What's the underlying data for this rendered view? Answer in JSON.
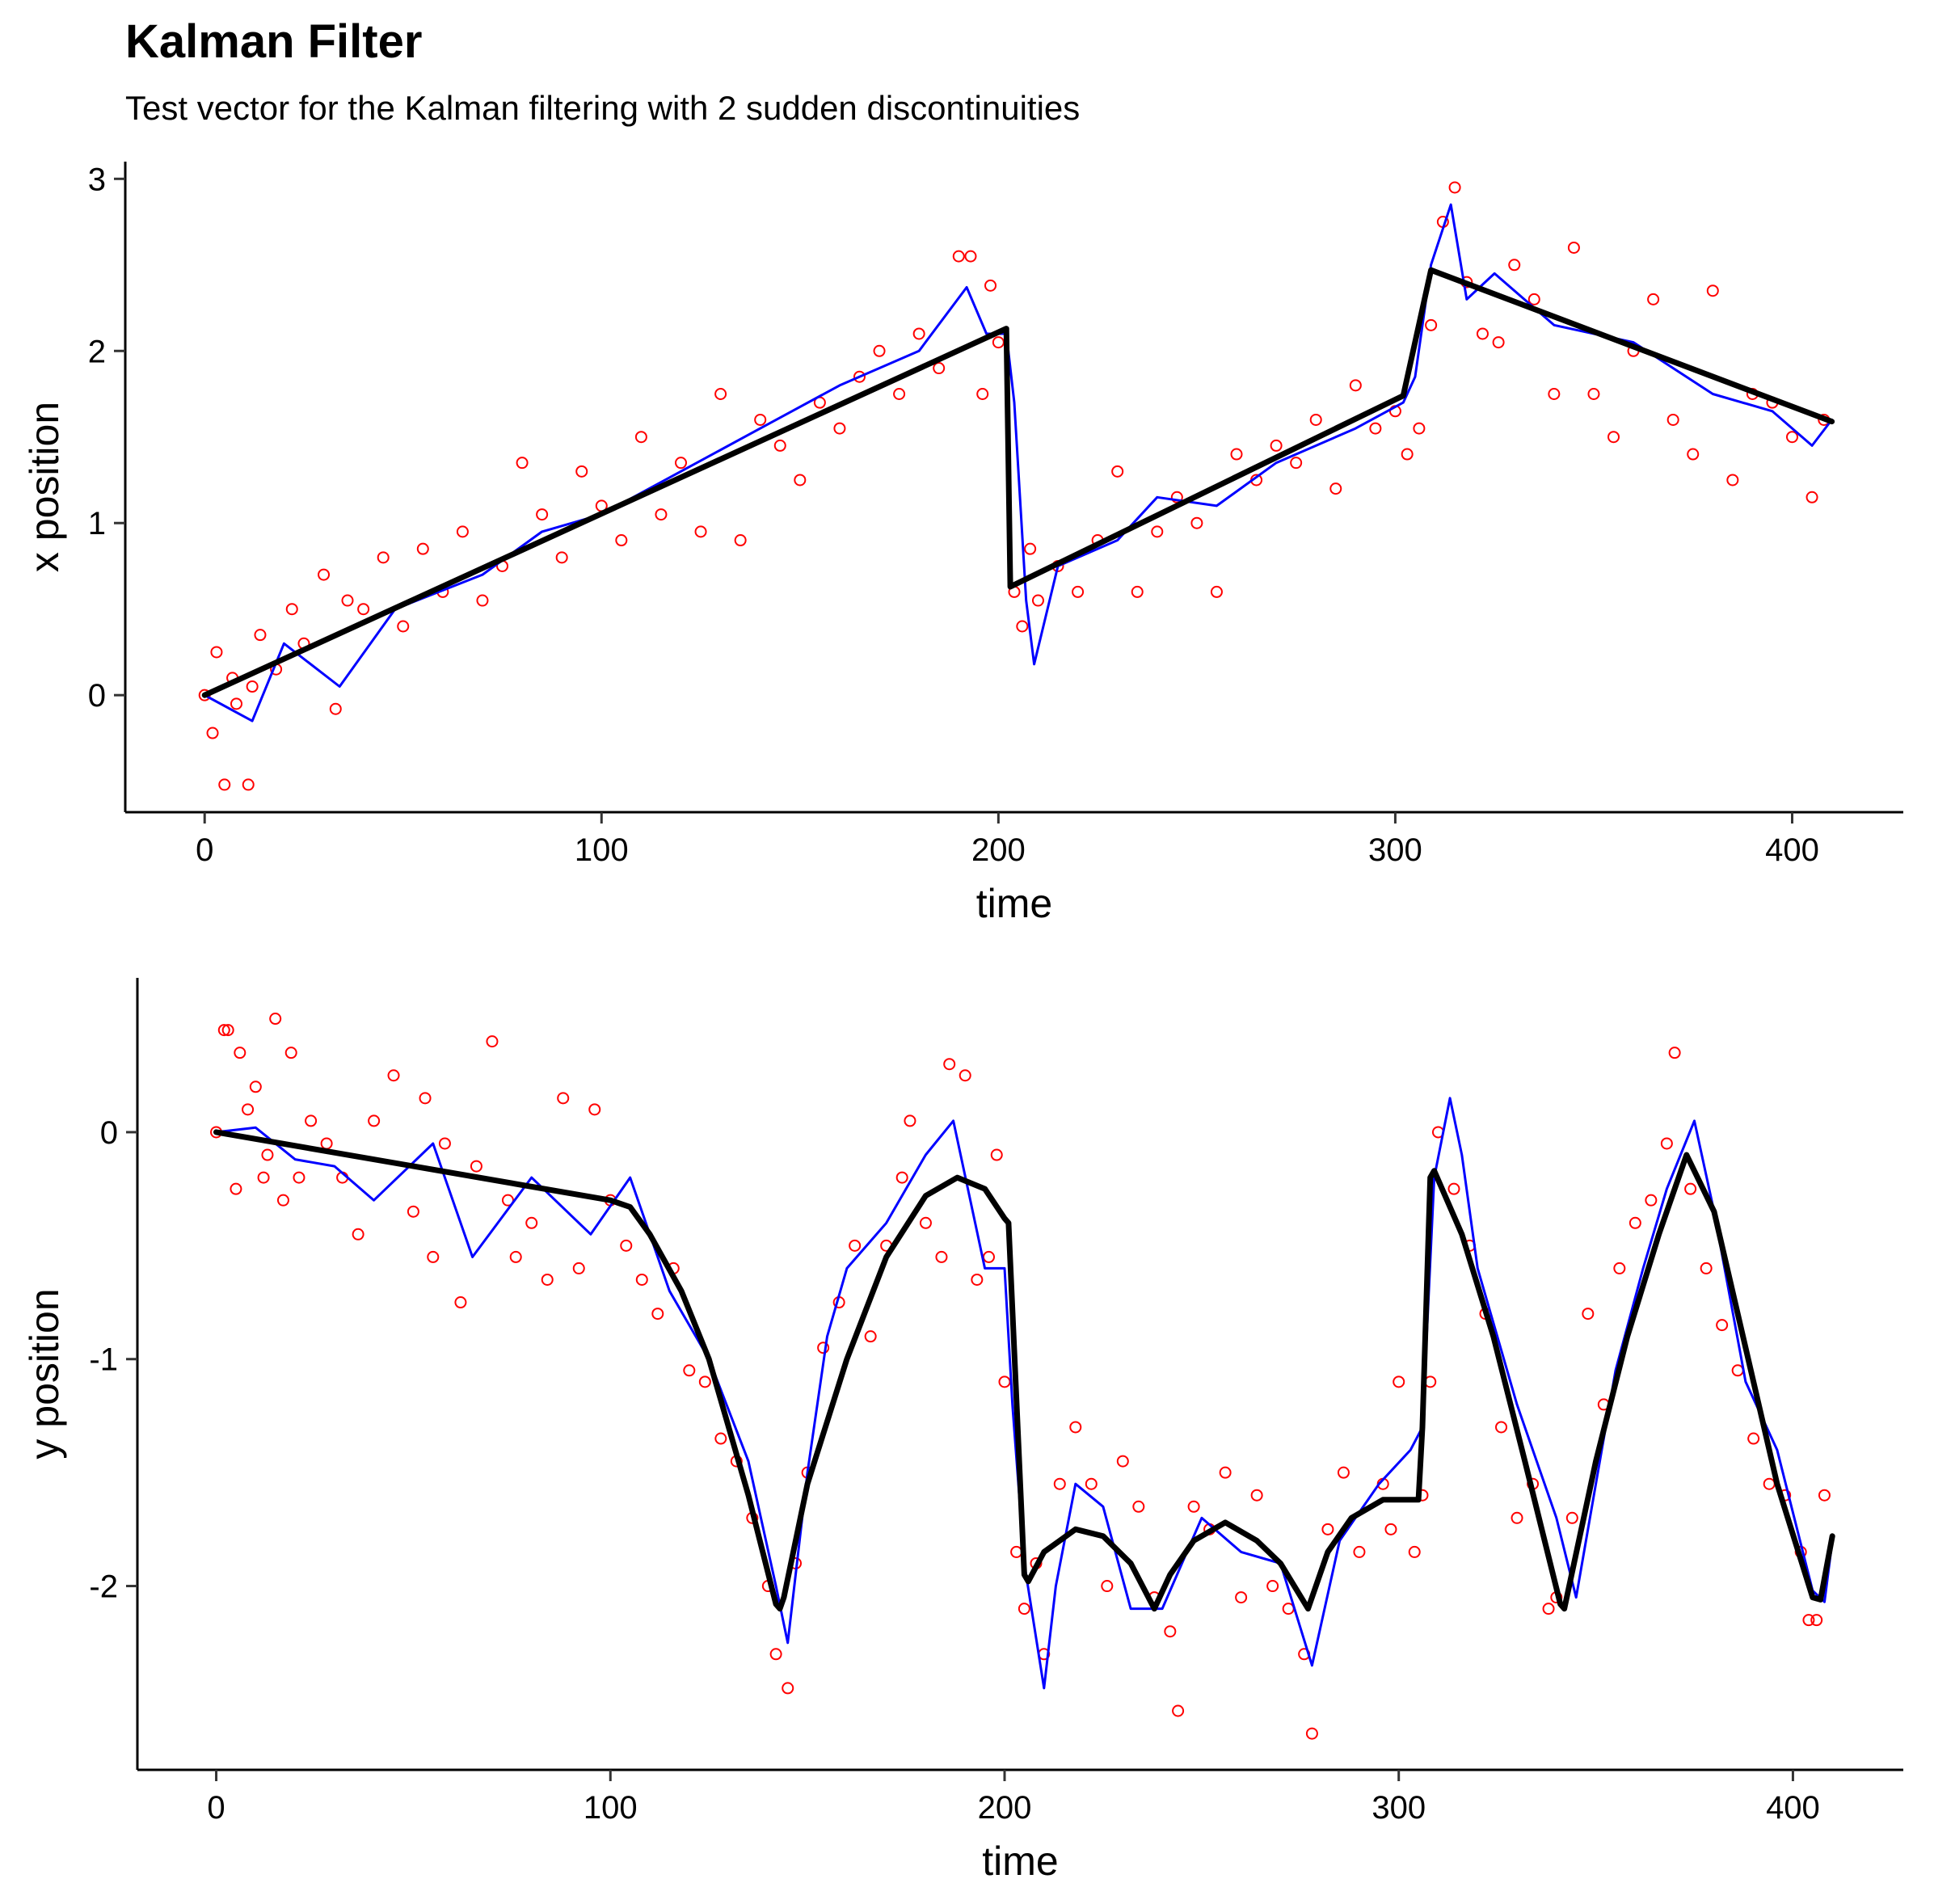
{
  "title": "Kalman Filter",
  "subtitle": "Test vector for the Kalman filtering with 2 sudden discontinuities",
  "colors": {
    "truth": "#000000",
    "filtered": "#0000ff",
    "observations": "#ff0000"
  },
  "chart_data": [
    {
      "type": "line",
      "panel": "x",
      "xlabel": "time",
      "ylabel": "x position",
      "xlim": [
        -20,
        428
      ],
      "ylim": [
        -0.68,
        3.1
      ],
      "xticks": [
        0,
        100,
        200,
        300,
        400
      ],
      "yticks": [
        0,
        1,
        2,
        3
      ],
      "xtick_labels": [
        "0",
        "100",
        "200",
        "300",
        "400"
      ],
      "ytick_labels": [
        "0",
        "1",
        "2",
        "3"
      ],
      "grid": false,
      "legend": "none",
      "series": [
        {
          "type": "line",
          "role": "truth",
          "x": [
            0,
            202,
            203,
            302,
            309,
            410
          ],
          "y": [
            0,
            2.13,
            0.63,
            1.74,
            2.47,
            1.59
          ]
        },
        {
          "type": "line",
          "role": "filtered",
          "x": [
            0,
            12,
            20,
            34,
            48,
            70,
            85,
            100,
            120,
            140,
            160,
            180,
            192,
            197,
            202,
            204,
            207,
            209,
            215,
            230,
            240,
            255,
            270,
            290,
            302,
            305,
            309,
            314,
            318,
            325,
            340,
            360,
            380,
            395,
            405,
            410
          ],
          "y": [
            0,
            -0.15,
            0.3,
            0.05,
            0.5,
            0.7,
            0.95,
            1.05,
            1.3,
            1.55,
            1.8,
            2.0,
            2.37,
            2.1,
            2.1,
            1.7,
            0.55,
            0.18,
            0.75,
            0.9,
            1.15,
            1.1,
            1.35,
            1.55,
            1.7,
            1.85,
            2.5,
            2.85,
            2.3,
            2.45,
            2.15,
            2.05,
            1.75,
            1.65,
            1.45,
            1.6
          ]
        },
        {
          "type": "scatter",
          "role": "observations",
          "x": [
            0,
            2,
            3,
            5,
            7,
            8,
            11,
            12,
            14,
            18,
            22,
            25,
            30,
            33,
            36,
            40,
            45,
            50,
            55,
            60,
            65,
            70,
            75,
            80,
            85,
            90,
            95,
            100,
            105,
            110,
            115,
            120,
            125,
            130,
            135,
            140,
            145,
            150,
            155,
            160,
            165,
            170,
            175,
            180,
            185,
            190,
            193,
            196,
            198,
            200,
            204,
            206,
            208,
            210,
            215,
            220,
            225,
            230,
            235,
            240,
            245,
            250,
            255,
            260,
            265,
            270,
            275,
            280,
            285,
            290,
            295,
            300,
            303,
            306,
            309,
            312,
            315,
            318,
            322,
            326,
            330,
            335,
            340,
            345,
            350,
            355,
            360,
            365,
            370,
            375,
            380,
            385,
            390,
            395,
            400,
            405,
            408
          ],
          "y": [
            0,
            -0.22,
            0.25,
            -0.52,
            0.1,
            -0.05,
            -0.52,
            0.05,
            0.35,
            0.15,
            0.5,
            0.3,
            0.7,
            -0.08,
            0.55,
            0.5,
            0.8,
            0.4,
            0.85,
            0.6,
            0.95,
            0.55,
            0.75,
            1.35,
            1.05,
            0.8,
            1.3,
            1.1,
            0.9,
            1.5,
            1.05,
            1.35,
            0.95,
            1.75,
            0.9,
            1.6,
            1.45,
            1.25,
            1.7,
            1.55,
            1.85,
            2.0,
            1.75,
            2.1,
            1.9,
            2.55,
            2.55,
            1.75,
            2.38,
            2.05,
            0.6,
            0.4,
            0.85,
            0.55,
            0.75,
            0.6,
            0.9,
            1.3,
            0.6,
            0.95,
            1.15,
            1.0,
            0.6,
            1.4,
            1.25,
            1.45,
            1.35,
            1.6,
            1.2,
            1.8,
            1.55,
            1.65,
            1.4,
            1.55,
            2.15,
            2.75,
            2.95,
            2.4,
            2.1,
            2.05,
            2.5,
            2.3,
            1.75,
            2.6,
            1.75,
            1.5,
            2.0,
            2.3,
            1.6,
            1.4,
            2.35,
            1.25,
            1.75,
            1.7,
            1.5,
            1.15,
            1.6
          ]
        }
      ]
    },
    {
      "type": "line",
      "panel": "y",
      "xlabel": "time",
      "ylabel": "y position",
      "xlim": [
        -20,
        428
      ],
      "ylim": [
        -2.81,
        0.68
      ],
      "xticks": [
        0,
        100,
        200,
        300,
        400
      ],
      "yticks": [
        -2,
        -1,
        0
      ],
      "xtick_labels": [
        "0",
        "100",
        "200",
        "300",
        "400"
      ],
      "ytick_labels": [
        "-2",
        "-1",
        "0"
      ],
      "grid": false,
      "legend": "none",
      "series": [
        {
          "type": "line",
          "role": "truth",
          "x": [
            0,
            100,
            105,
            110,
            118,
            125,
            135,
            142,
            143,
            144,
            150,
            160,
            170,
            180,
            188,
            195,
            200,
            201,
            205,
            206,
            210,
            218,
            225,
            232,
            238,
            242,
            248,
            256,
            264,
            270,
            277,
            282,
            288,
            296,
            305,
            306,
            308,
            309,
            316,
            324,
            332,
            341,
            342,
            350,
            358,
            366,
            373,
            380,
            388,
            396,
            405,
            407,
            410
          ],
          "y": [
            0,
            -0.3,
            -0.33,
            -0.45,
            -0.7,
            -1.0,
            -1.6,
            -2.08,
            -2.1,
            -2.05,
            -1.55,
            -1.0,
            -0.55,
            -0.28,
            -0.2,
            -0.25,
            -0.38,
            -0.4,
            -1.95,
            -1.98,
            -1.85,
            -1.75,
            -1.78,
            -1.9,
            -2.1,
            -1.95,
            -1.8,
            -1.72,
            -1.8,
            -1.9,
            -2.1,
            -1.85,
            -1.7,
            -1.62,
            -1.62,
            -1.3,
            -0.2,
            -0.17,
            -0.45,
            -0.9,
            -1.45,
            -2.08,
            -2.1,
            -1.45,
            -0.9,
            -0.45,
            -0.1,
            -0.35,
            -0.95,
            -1.55,
            -2.05,
            -2.06,
            -1.78
          ]
        },
        {
          "type": "line",
          "role": "filtered",
          "x": [
            0,
            10,
            20,
            30,
            40,
            55,
            65,
            80,
            95,
            105,
            115,
            125,
            135,
            142,
            145,
            150,
            155,
            160,
            170,
            180,
            187,
            195,
            200,
            202,
            205,
            210,
            213,
            218,
            225,
            232,
            240,
            250,
            260,
            270,
            278,
            285,
            295,
            303,
            306,
            309,
            313,
            316,
            320,
            330,
            340,
            345,
            355,
            362,
            368,
            375,
            380,
            388,
            396,
            405,
            408,
            410
          ],
          "y": [
            0,
            0.02,
            -0.12,
            -0.15,
            -0.3,
            -0.05,
            -0.55,
            -0.2,
            -0.45,
            -0.2,
            -0.7,
            -1.0,
            -1.45,
            -2.0,
            -2.25,
            -1.5,
            -0.9,
            -0.6,
            -0.4,
            -0.1,
            0.05,
            -0.6,
            -0.6,
            -1.2,
            -1.9,
            -2.45,
            -2.0,
            -1.55,
            -1.65,
            -2.1,
            -2.1,
            -1.7,
            -1.85,
            -1.9,
            -2.35,
            -1.8,
            -1.55,
            -1.4,
            -1.3,
            -0.2,
            0.15,
            -0.1,
            -0.6,
            -1.2,
            -1.7,
            -2.05,
            -1.05,
            -0.6,
            -0.25,
            0.05,
            -0.35,
            -1.1,
            -1.4,
            -2.02,
            -2.07,
            -1.8
          ]
        },
        {
          "type": "scatter",
          "role": "observations",
          "x": [
            0,
            2,
            3,
            5,
            6,
            8,
            10,
            12,
            13,
            15,
            17,
            19,
            21,
            24,
            28,
            32,
            36,
            40,
            45,
            50,
            53,
            55,
            58,
            62,
            66,
            70,
            74,
            76,
            80,
            84,
            88,
            92,
            96,
            100,
            104,
            108,
            112,
            116,
            120,
            124,
            128,
            132,
            136,
            140,
            142,
            145,
            147,
            150,
            154,
            158,
            162,
            166,
            170,
            174,
            176,
            180,
            184,
            186,
            190,
            193,
            196,
            198,
            200,
            203,
            205,
            208,
            210,
            214,
            218,
            222,
            226,
            230,
            234,
            238,
            242,
            244,
            248,
            252,
            256,
            260,
            264,
            268,
            272,
            276,
            278,
            282,
            286,
            290,
            296,
            298,
            300,
            304,
            306,
            308,
            310,
            314,
            318,
            322,
            326,
            330,
            334,
            338,
            340,
            344,
            348,
            352,
            356,
            360,
            364,
            368,
            370,
            374,
            378,
            382,
            386,
            390,
            394,
            398,
            402,
            404,
            406,
            408
          ],
          "y": [
            0,
            0.45,
            0.45,
            -0.25,
            0.35,
            0.1,
            0.2,
            -0.2,
            -0.1,
            0.5,
            -0.3,
            0.35,
            -0.2,
            0.05,
            -0.05,
            -0.2,
            -0.45,
            0.05,
            0.25,
            -0.35,
            0.15,
            -0.55,
            -0.05,
            -0.75,
            -0.15,
            0.4,
            -0.3,
            -0.55,
            -0.4,
            -0.65,
            0.15,
            -0.6,
            0.1,
            -0.3,
            -0.5,
            -0.65,
            -0.8,
            -0.6,
            -1.05,
            -1.1,
            -1.35,
            -1.45,
            -1.7,
            -2.0,
            -2.3,
            -2.45,
            -1.9,
            -1.5,
            -0.95,
            -0.75,
            -0.5,
            -0.9,
            -0.5,
            -0.2,
            0.05,
            -0.4,
            -0.55,
            0.3,
            0.25,
            -0.65,
            -0.55,
            -0.1,
            -1.1,
            -1.85,
            -2.1,
            -1.9,
            -2.3,
            -1.55,
            -1.3,
            -1.55,
            -2.0,
            -1.45,
            -1.65,
            -2.05,
            -2.2,
            -2.55,
            -1.65,
            -1.75,
            -1.5,
            -2.05,
            -1.6,
            -2.0,
            -2.1,
            -2.3,
            -2.65,
            -1.75,
            -1.5,
            -1.85,
            -1.55,
            -1.75,
            -1.1,
            -1.85,
            -1.6,
            -1.1,
            0.0,
            -0.25,
            -0.5,
            -0.8,
            -1.3,
            -1.7,
            -1.55,
            -2.1,
            -2.05,
            -1.7,
            -0.8,
            -1.2,
            -0.6,
            -0.4,
            -0.3,
            -0.05,
            0.35,
            -0.25,
            -0.6,
            -0.85,
            -1.05,
            -1.35,
            -1.55,
            -1.6,
            -1.85,
            -2.15,
            -2.15,
            -1.6
          ]
        }
      ]
    }
  ]
}
